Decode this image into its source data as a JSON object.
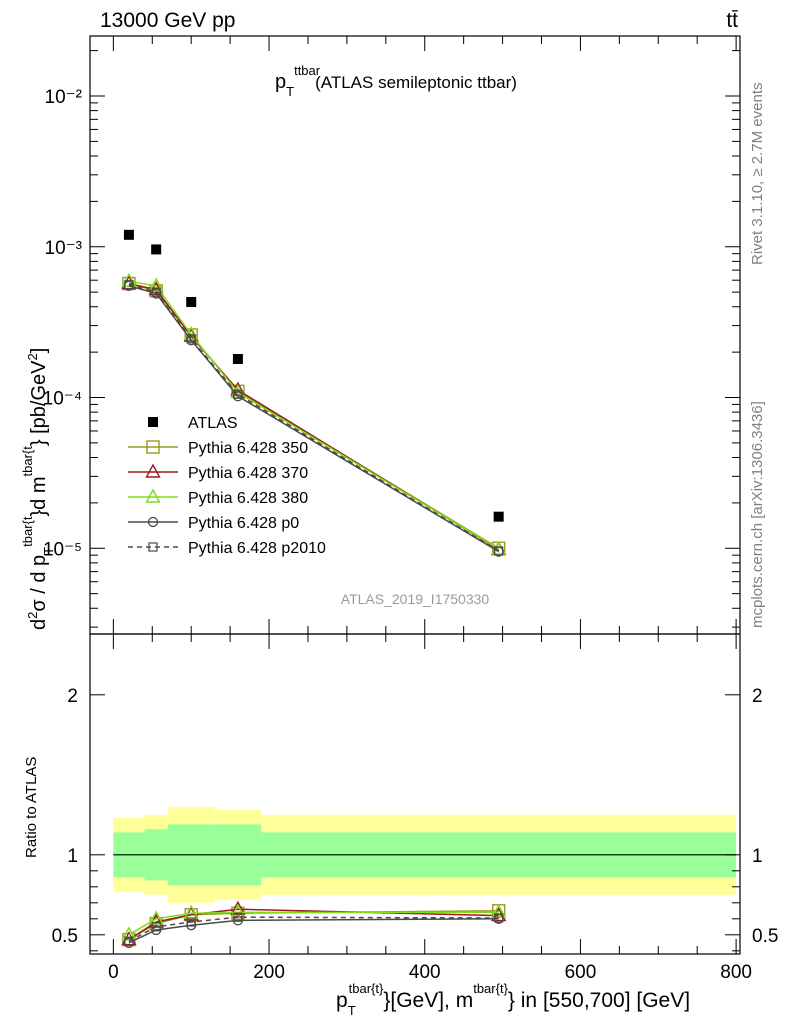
{
  "header": {
    "energy_label": "13000 GeV pp",
    "process_label": "tt̄"
  },
  "side_labels": {
    "rivet": "Rivet 3.1.10, ≥ 2.7M events",
    "mcplots": "mcplots.cern.ch [arXiv:1306.3436]"
  },
  "analysis_id": "ATLAS_2019_I1750330",
  "colors": {
    "atlas": "#000000",
    "p350": "#9a9a20",
    "p370": "#9c1b1b",
    "p380": "#7fdd1a",
    "p0": "#4a4a4a",
    "p2010": "#4a4a4a",
    "band_inner": "#99ff99",
    "band_outer": "#ffff99"
  },
  "chart_data": [
    {
      "type": "line",
      "title": "p_T^{ttbar} (ATLAS semileptonic ttbar)",
      "title_main": "p",
      "title_sub": "T",
      "title_sup": "ttbar",
      "title_rest": "(ATLAS semileptonic ttbar)",
      "ylabel": "d²σ / d p_T^{tbar{t}} d m^{tbar{t}} [pb/GeV²]",
      "yscale": "log",
      "ylim": [
        2.7e-06,
        0.025
      ],
      "xlim": [
        -30,
        805
      ],
      "ytick_labels": [
        "10⁻⁵",
        "10⁻⁴",
        "10⁻³",
        "10⁻²"
      ],
      "legend_position": "middle-left",
      "x": [
        20,
        55,
        100,
        160,
        495
      ],
      "series": [
        {
          "name": "ATLAS",
          "style": "data",
          "values": [
            0.0012,
            0.00096,
            0.00043,
            0.00018,
            1.62e-05
          ]
        },
        {
          "name": "Pythia 6.428 350",
          "style": "square-open",
          "values": [
            0.00057,
            0.00051,
            0.00026,
            0.00011,
            1e-05
          ]
        },
        {
          "name": "Pythia 6.428 370",
          "style": "triangle-open",
          "values": [
            0.00057,
            0.00052,
            0.000255,
            0.000112,
            9.8e-06
          ]
        },
        {
          "name": "Pythia 6.428 380",
          "style": "triangle-open",
          "values": [
            0.00059,
            0.00055,
            0.000262,
            0.000108,
            9.9e-06
          ]
        },
        {
          "name": "Pythia 6.428 p0",
          "style": "circle-open",
          "values": [
            0.00055,
            0.00049,
            0.00024,
            0.000102,
            9.5e-06
          ]
        },
        {
          "name": "Pythia 6.428 p2010",
          "style": "square-open-dashed",
          "values": [
            0.00056,
            0.0005,
            0.000245,
            0.000105,
            9.6e-06
          ]
        }
      ]
    },
    {
      "type": "line",
      "ylabel": "Ratio to ATLAS",
      "xlabel": "p_T^{tbar{t}} [GeV], m^{tbar{t}} in [550,700] [GeV]",
      "xlabel_main": "p",
      "xlabel_sub": "T",
      "xlabel_sup1": "tbar{t}",
      "xlabel_mid": "}[GeV], m",
      "xlabel_sup2": "tbar{t}",
      "xlabel_end": "} in [550,700] [GeV]",
      "ylim": [
        0.38,
        2.38
      ],
      "xlim": [
        -30,
        805
      ],
      "x_ticks": [
        0,
        200,
        400,
        600,
        800
      ],
      "x_tick_labels": [
        "0",
        "200",
        "400",
        "600",
        "800"
      ],
      "y_ticks": [
        0.5,
        1,
        2
      ],
      "y_tick_labels": [
        "0.5",
        "1",
        "2"
      ],
      "band_edges": [
        0,
        40,
        70,
        130,
        190,
        800
      ],
      "band_inner": [
        0.14,
        0.16,
        0.19,
        0.19,
        0.14
      ],
      "band_outer": [
        0.23,
        0.25,
        0.3,
        0.28,
        0.25
      ],
      "x": [
        20,
        55,
        100,
        160,
        495
      ],
      "series": [
        {
          "name": "Pythia 6.428 350",
          "values": [
            0.47,
            0.57,
            0.625,
            0.635,
            0.65
          ]
        },
        {
          "name": "Pythia 6.428 370",
          "values": [
            0.47,
            0.58,
            0.625,
            0.66,
            0.62
          ]
        },
        {
          "name": "Pythia 6.428 380",
          "values": [
            0.5,
            0.6,
            0.635,
            0.64,
            0.64
          ]
        },
        {
          "name": "Pythia 6.428 p0",
          "values": [
            0.45,
            0.53,
            0.56,
            0.59,
            0.6
          ]
        },
        {
          "name": "Pythia 6.428 p2010",
          "values": [
            0.46,
            0.55,
            0.58,
            0.61,
            0.605
          ]
        }
      ]
    }
  ]
}
